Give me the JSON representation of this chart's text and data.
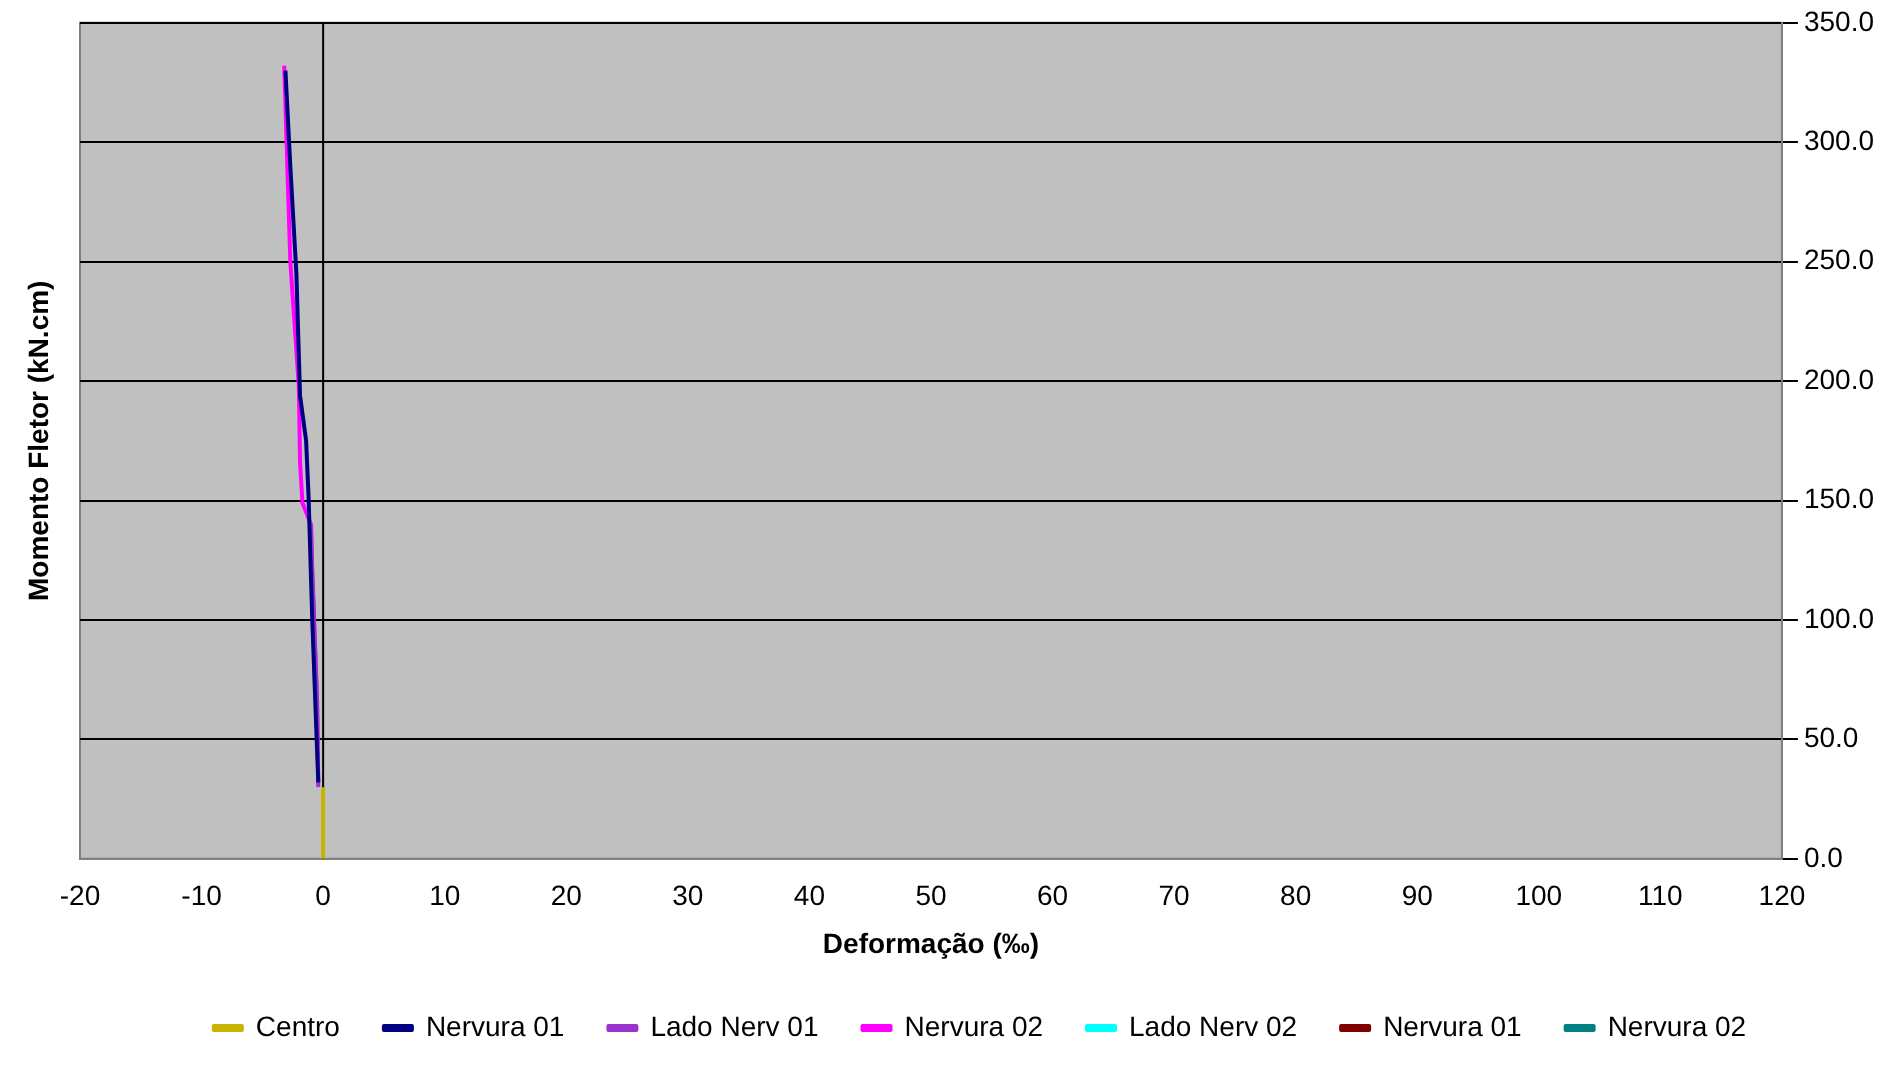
{
  "chart_data": {
    "type": "line",
    "xlabel": "Deformação (‰)",
    "ylabel": "Momento Fletor (kN.cm)",
    "xlim": [
      -20,
      120
    ],
    "xticks": [
      -20,
      -10,
      0,
      10,
      20,
      30,
      40,
      50,
      60,
      70,
      80,
      90,
      100,
      110,
      120
    ],
    "ylim": [
      0,
      350
    ],
    "yticks": [
      {
        "value": 0,
        "label": "0.0"
      },
      {
        "value": 50,
        "label": "50.0"
      },
      {
        "value": 100,
        "label": "100.0"
      },
      {
        "value": 150,
        "label": "150.0"
      },
      {
        "value": 200,
        "label": "200.0"
      },
      {
        "value": 250,
        "label": "250.0"
      },
      {
        "value": 300,
        "label": "300.0"
      },
      {
        "value": 350,
        "label": "350.0"
      }
    ],
    "grid": "y",
    "ref_lines": [
      {
        "axis": "x",
        "value": 0,
        "color": "#000000"
      }
    ],
    "legend": "bottom",
    "marker": "none",
    "line_style": "solid",
    "series": [
      {
        "name": "Centro",
        "color": "#c8b400",
        "x": [
          0,
          0
        ],
        "values": [
          0,
          30
        ]
      },
      {
        "name": "Nervura 01",
        "color": "#000080",
        "x": [
          -0.4,
          -0.9,
          -1.2,
          -1.4,
          -1.9,
          -2.2,
          -2.7,
          -3.1
        ],
        "values": [
          32,
          101,
          152,
          175,
          194,
          245,
          290,
          330
        ]
      },
      {
        "name": "Lado Nerv 01",
        "color": "#9933cc",
        "x": [
          -0.4,
          -0.5,
          -0.9,
          -1.0
        ],
        "values": [
          30,
          66,
          121,
          140
        ]
      },
      {
        "name": "Nervura 02",
        "color": "#ff00ff",
        "x": [
          -0.4,
          -0.5,
          -0.9,
          -1.0,
          -1.7,
          -1.9,
          -2.0,
          -2.7,
          -3.2
        ],
        "values": [
          32,
          66,
          121,
          140,
          149,
          166,
          198,
          250,
          332
        ]
      },
      {
        "name": "Lado Nerv 02",
        "color": "#00ffff"
      },
      {
        "name": "Nervura 01",
        "color": "#800000"
      },
      {
        "name": "Nervura 02",
        "color": "#008080"
      }
    ]
  }
}
